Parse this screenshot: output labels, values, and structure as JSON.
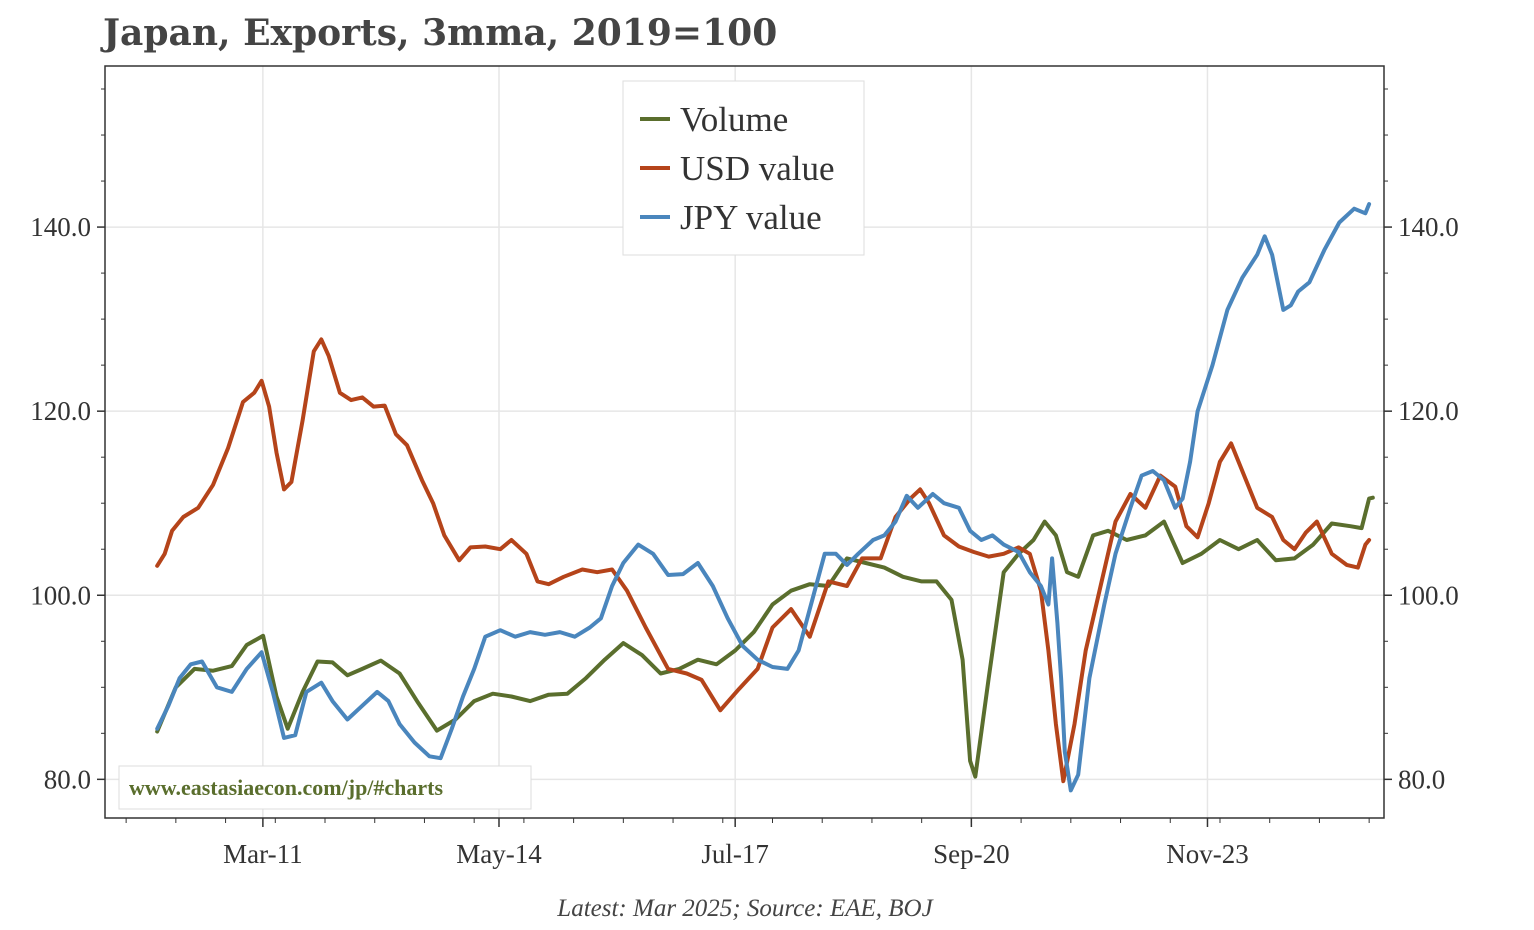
{
  "title": "Japan, Exports, 3mma, 2019=100",
  "footer": "Latest: Mar 2025; Source: EAE, BOJ",
  "watermark": "www.eastasiaecon.com/jp/#charts",
  "colors": {
    "volume": "#5a6e2d",
    "usd": "#b5441a",
    "jpy": "#4a86bd",
    "grid": "#e6e6e6",
    "axis": "#333333",
    "watermark": "#5a6e2d"
  },
  "chart_data": {
    "type": "line",
    "title": "Japan, Exports, 3mma, 2019=100",
    "xlabel": "",
    "ylabel": "",
    "x_tick_labels": [
      "Mar-11",
      "May-14",
      "Jul-17",
      "Sep-20",
      "Nov-23"
    ],
    "x_tick_positions": [
      2011.167,
      2014.333,
      2017.5,
      2020.667,
      2023.833
    ],
    "xlim": [
      2009.05,
      2026.2
    ],
    "ylim": [
      75.8,
      157.5
    ],
    "y_ticks": [
      80,
      100,
      120,
      140
    ],
    "y_tick_labels": [
      "80.0",
      "100.0",
      "120.0",
      "140.0"
    ],
    "legend": {
      "location": "top-center",
      "entries": [
        "Volume",
        "USD value",
        "JPY value"
      ]
    },
    "series": [
      {
        "name": "Volume",
        "color_key": "volume",
        "points": [
          [
            2009.75,
            85.2
          ],
          [
            2010.0,
            90.0
          ],
          [
            2010.25,
            92.0
          ],
          [
            2010.5,
            91.8
          ],
          [
            2010.75,
            92.3
          ],
          [
            2010.95,
            94.6
          ],
          [
            2011.17,
            95.6
          ],
          [
            2011.35,
            89.0
          ],
          [
            2011.5,
            85.5
          ],
          [
            2011.7,
            89.5
          ],
          [
            2011.9,
            92.8
          ],
          [
            2012.1,
            92.7
          ],
          [
            2012.3,
            91.3
          ],
          [
            2012.5,
            92.0
          ],
          [
            2012.75,
            92.9
          ],
          [
            2013.0,
            91.5
          ],
          [
            2013.25,
            88.3
          ],
          [
            2013.5,
            85.3
          ],
          [
            2013.75,
            86.5
          ],
          [
            2014.0,
            88.5
          ],
          [
            2014.25,
            89.3
          ],
          [
            2014.5,
            89.0
          ],
          [
            2014.75,
            88.5
          ],
          [
            2015.0,
            89.2
          ],
          [
            2015.25,
            89.3
          ],
          [
            2015.5,
            91.0
          ],
          [
            2015.75,
            93.0
          ],
          [
            2016.0,
            94.8
          ],
          [
            2016.25,
            93.5
          ],
          [
            2016.5,
            91.5
          ],
          [
            2016.75,
            92.0
          ],
          [
            2017.0,
            93.0
          ],
          [
            2017.25,
            92.5
          ],
          [
            2017.5,
            94.0
          ],
          [
            2017.75,
            96.0
          ],
          [
            2018.0,
            99.0
          ],
          [
            2018.25,
            100.5
          ],
          [
            2018.5,
            101.2
          ],
          [
            2018.75,
            101.0
          ],
          [
            2019.0,
            104.0
          ],
          [
            2019.25,
            103.5
          ],
          [
            2019.5,
            103.0
          ],
          [
            2019.75,
            102.0
          ],
          [
            2020.0,
            101.5
          ],
          [
            2020.2,
            101.5
          ],
          [
            2020.4,
            99.5
          ],
          [
            2020.55,
            93.0
          ],
          [
            2020.65,
            82.0
          ],
          [
            2020.72,
            80.3
          ],
          [
            2020.9,
            91.0
          ],
          [
            2021.1,
            102.5
          ],
          [
            2021.3,
            104.5
          ],
          [
            2021.5,
            106.0
          ],
          [
            2021.65,
            108.0
          ],
          [
            2021.8,
            106.5
          ],
          [
            2021.95,
            102.5
          ],
          [
            2022.1,
            102.0
          ],
          [
            2022.3,
            106.5
          ],
          [
            2022.5,
            107.0
          ],
          [
            2022.75,
            106.0
          ],
          [
            2023.0,
            106.5
          ],
          [
            2023.25,
            108.0
          ],
          [
            2023.5,
            103.5
          ],
          [
            2023.75,
            104.5
          ],
          [
            2024.0,
            106.0
          ],
          [
            2024.25,
            105.0
          ],
          [
            2024.5,
            106.0
          ],
          [
            2024.75,
            103.8
          ],
          [
            2025.0,
            104.0
          ],
          [
            2025.25,
            105.5
          ],
          [
            2025.5,
            107.8
          ],
          [
            2025.75,
            107.5
          ],
          [
            2025.9,
            107.3
          ],
          [
            2026.0,
            110.5
          ],
          [
            2026.05,
            110.6
          ]
        ]
      },
      {
        "name": "USD value",
        "color_key": "usd",
        "points": [
          [
            2009.75,
            103.2
          ],
          [
            2009.85,
            104.5
          ],
          [
            2009.95,
            107.0
          ],
          [
            2010.1,
            108.5
          ],
          [
            2010.3,
            109.5
          ],
          [
            2010.5,
            112.0
          ],
          [
            2010.7,
            116.0
          ],
          [
            2010.9,
            121.0
          ],
          [
            2011.05,
            122.0
          ],
          [
            2011.15,
            123.3
          ],
          [
            2011.25,
            120.5
          ],
          [
            2011.35,
            115.5
          ],
          [
            2011.45,
            111.5
          ],
          [
            2011.55,
            112.3
          ],
          [
            2011.7,
            119.0
          ],
          [
            2011.85,
            126.5
          ],
          [
            2011.95,
            127.8
          ],
          [
            2012.05,
            126.0
          ],
          [
            2012.2,
            122.0
          ],
          [
            2012.35,
            121.2
          ],
          [
            2012.5,
            121.5
          ],
          [
            2012.65,
            120.5
          ],
          [
            2012.8,
            120.6
          ],
          [
            2012.95,
            117.5
          ],
          [
            2013.1,
            116.3
          ],
          [
            2013.3,
            112.5
          ],
          [
            2013.45,
            110.0
          ],
          [
            2013.6,
            106.5
          ],
          [
            2013.8,
            103.8
          ],
          [
            2013.95,
            105.2
          ],
          [
            2014.15,
            105.3
          ],
          [
            2014.35,
            105.0
          ],
          [
            2014.5,
            106.0
          ],
          [
            2014.7,
            104.5
          ],
          [
            2014.85,
            101.5
          ],
          [
            2015.0,
            101.2
          ],
          [
            2015.2,
            102.0
          ],
          [
            2015.45,
            102.8
          ],
          [
            2015.65,
            102.5
          ],
          [
            2015.85,
            102.8
          ],
          [
            2016.05,
            100.5
          ],
          [
            2016.3,
            96.5
          ],
          [
            2016.6,
            92.0
          ],
          [
            2016.85,
            91.5
          ],
          [
            2017.05,
            90.8
          ],
          [
            2017.3,
            87.5
          ],
          [
            2017.55,
            89.8
          ],
          [
            2017.8,
            92.0
          ],
          [
            2018.0,
            96.5
          ],
          [
            2018.25,
            98.5
          ],
          [
            2018.5,
            95.5
          ],
          [
            2018.75,
            101.5
          ],
          [
            2019.0,
            101.0
          ],
          [
            2019.2,
            104.0
          ],
          [
            2019.45,
            104.0
          ],
          [
            2019.65,
            108.5
          ],
          [
            2019.85,
            110.5
          ],
          [
            2019.98,
            111.5
          ],
          [
            2020.1,
            110.0
          ],
          [
            2020.3,
            106.5
          ],
          [
            2020.5,
            105.3
          ],
          [
            2020.7,
            104.7
          ],
          [
            2020.9,
            104.2
          ],
          [
            2021.1,
            104.5
          ],
          [
            2021.3,
            105.2
          ],
          [
            2021.45,
            104.5
          ],
          [
            2021.6,
            100.5
          ],
          [
            2021.7,
            94.0
          ],
          [
            2021.8,
            86.0
          ],
          [
            2021.9,
            79.8
          ],
          [
            2022.05,
            86.0
          ],
          [
            2022.2,
            94.0
          ],
          [
            2022.4,
            101.0
          ],
          [
            2022.6,
            108.0
          ],
          [
            2022.8,
            111.0
          ],
          [
            2023.0,
            109.5
          ],
          [
            2023.2,
            113.0
          ],
          [
            2023.4,
            111.8
          ],
          [
            2023.55,
            107.5
          ],
          [
            2023.7,
            106.3
          ],
          [
            2023.85,
            110.0
          ],
          [
            2024.0,
            114.5
          ],
          [
            2024.15,
            116.5
          ],
          [
            2024.3,
            113.5
          ],
          [
            2024.5,
            109.5
          ],
          [
            2024.7,
            108.5
          ],
          [
            2024.85,
            106.0
          ],
          [
            2025.0,
            105.0
          ],
          [
            2025.15,
            106.8
          ],
          [
            2025.3,
            108.0
          ],
          [
            2025.5,
            104.5
          ],
          [
            2025.7,
            103.3
          ],
          [
            2025.85,
            103.0
          ],
          [
            2025.95,
            105.5
          ],
          [
            2026.0,
            106.0
          ]
        ]
      },
      {
        "name": "JPY value",
        "color_key": "jpy",
        "points": [
          [
            2009.75,
            85.5
          ],
          [
            2009.9,
            88.0
          ],
          [
            2010.05,
            91.0
          ],
          [
            2010.2,
            92.5
          ],
          [
            2010.35,
            92.8
          ],
          [
            2010.55,
            90.0
          ],
          [
            2010.75,
            89.5
          ],
          [
            2010.95,
            92.0
          ],
          [
            2011.15,
            93.8
          ],
          [
            2011.3,
            89.5
          ],
          [
            2011.45,
            84.5
          ],
          [
            2011.6,
            84.8
          ],
          [
            2011.75,
            89.5
          ],
          [
            2011.95,
            90.5
          ],
          [
            2012.1,
            88.5
          ],
          [
            2012.3,
            86.5
          ],
          [
            2012.5,
            88.0
          ],
          [
            2012.7,
            89.5
          ],
          [
            2012.85,
            88.5
          ],
          [
            2013.0,
            86.0
          ],
          [
            2013.2,
            84.0
          ],
          [
            2013.4,
            82.5
          ],
          [
            2013.55,
            82.3
          ],
          [
            2013.7,
            85.5
          ],
          [
            2013.85,
            89.0
          ],
          [
            2014.0,
            92.0
          ],
          [
            2014.15,
            95.5
          ],
          [
            2014.35,
            96.2
          ],
          [
            2014.55,
            95.5
          ],
          [
            2014.75,
            96.0
          ],
          [
            2014.95,
            95.7
          ],
          [
            2015.15,
            96.0
          ],
          [
            2015.35,
            95.5
          ],
          [
            2015.55,
            96.5
          ],
          [
            2015.7,
            97.5
          ],
          [
            2015.85,
            101.0
          ],
          [
            2016.0,
            103.5
          ],
          [
            2016.2,
            105.5
          ],
          [
            2016.4,
            104.5
          ],
          [
            2016.6,
            102.2
          ],
          [
            2016.8,
            102.3
          ],
          [
            2017.0,
            103.5
          ],
          [
            2017.2,
            101.0
          ],
          [
            2017.4,
            97.5
          ],
          [
            2017.6,
            94.5
          ],
          [
            2017.8,
            93.0
          ],
          [
            2018.0,
            92.2
          ],
          [
            2018.2,
            92.0
          ],
          [
            2018.35,
            94.0
          ],
          [
            2018.55,
            100.0
          ],
          [
            2018.7,
            104.5
          ],
          [
            2018.85,
            104.5
          ],
          [
            2019.0,
            103.3
          ],
          [
            2019.15,
            104.5
          ],
          [
            2019.35,
            106.0
          ],
          [
            2019.5,
            106.5
          ],
          [
            2019.65,
            108.0
          ],
          [
            2019.8,
            110.8
          ],
          [
            2019.95,
            109.5
          ],
          [
            2020.15,
            111.0
          ],
          [
            2020.3,
            110.0
          ],
          [
            2020.5,
            109.5
          ],
          [
            2020.65,
            107.0
          ],
          [
            2020.8,
            106.0
          ],
          [
            2020.95,
            106.5
          ],
          [
            2021.1,
            105.5
          ],
          [
            2021.3,
            104.7
          ],
          [
            2021.45,
            102.5
          ],
          [
            2021.6,
            101.0
          ],
          [
            2021.7,
            99.0
          ],
          [
            2021.75,
            104.0
          ],
          [
            2021.82,
            97.0
          ],
          [
            2021.87,
            91.0
          ],
          [
            2021.92,
            83.0
          ],
          [
            2022.0,
            78.8
          ],
          [
            2022.1,
            80.5
          ],
          [
            2022.25,
            91.0
          ],
          [
            2022.45,
            99.0
          ],
          [
            2022.6,
            104.5
          ],
          [
            2022.8,
            109.5
          ],
          [
            2022.95,
            113.0
          ],
          [
            2023.1,
            113.5
          ],
          [
            2023.25,
            112.5
          ],
          [
            2023.4,
            109.5
          ],
          [
            2023.5,
            110.5
          ],
          [
            2023.6,
            114.5
          ],
          [
            2023.7,
            120.0
          ],
          [
            2023.9,
            125.0
          ],
          [
            2024.1,
            131.0
          ],
          [
            2024.3,
            134.5
          ],
          [
            2024.5,
            137.0
          ],
          [
            2024.6,
            139.0
          ],
          [
            2024.7,
            137.0
          ],
          [
            2024.85,
            131.0
          ],
          [
            2024.95,
            131.5
          ],
          [
            2025.05,
            133.0
          ],
          [
            2025.2,
            134.0
          ],
          [
            2025.4,
            137.5
          ],
          [
            2025.6,
            140.5
          ],
          [
            2025.8,
            142.0
          ],
          [
            2025.95,
            141.5
          ],
          [
            2026.0,
            142.5
          ]
        ]
      }
    ]
  }
}
